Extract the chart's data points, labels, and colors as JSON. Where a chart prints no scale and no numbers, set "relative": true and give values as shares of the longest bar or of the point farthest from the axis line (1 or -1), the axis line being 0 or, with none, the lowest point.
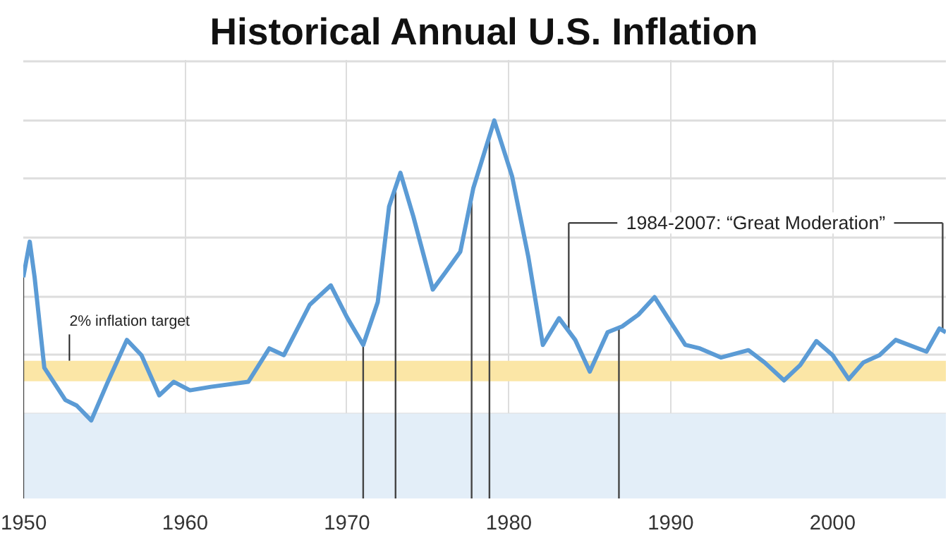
{
  "chart_data": {
    "type": "line",
    "title": "Historical Annual U.S. Inflation",
    "relative": true,
    "x": [
      1950.0,
      1950.4,
      1950.7,
      1951.3,
      1952.6,
      1953.3,
      1954.2,
      1955.2,
      1956.4,
      1957.3,
      1958.4,
      1959.3,
      1960.3,
      1961.6,
      1963.9,
      1965.2,
      1966.1,
      1967.7,
      1969.0,
      1970.0,
      1971.0,
      1971.9,
      1972.6,
      1973.3,
      1974.1,
      1975.3,
      1976.1,
      1977.0,
      1977.8,
      1979.1,
      1980.2,
      1981.2,
      1982.1,
      1983.1,
      1984.1,
      1985.0,
      1986.1,
      1987.0,
      1988.0,
      1989.0,
      1990.0,
      1990.9,
      1991.8,
      1993.1,
      1994.8,
      1995.8,
      1997.0,
      1998.0,
      1999.0,
      2000.0,
      2001.0,
      2001.9,
      2002.9,
      2003.9,
      2005.8,
      2006.6,
      2007.0
    ],
    "series": [
      {
        "color": "#5b9bd5",
        "values": [
          0.465,
          0.586,
          0.465,
          0.156,
          0.046,
          0.027,
          -0.024,
          0.105,
          0.251,
          0.199,
          0.062,
          0.108,
          0.079,
          0.091,
          0.108,
          0.222,
          0.199,
          0.371,
          0.437,
          0.328,
          0.234,
          0.38,
          0.706,
          0.821,
          0.672,
          0.423,
          0.483,
          0.552,
          0.768,
          1.0,
          0.809,
          0.535,
          0.234,
          0.325,
          0.251,
          0.143,
          0.277,
          0.297,
          0.337,
          0.397,
          0.311,
          0.234,
          0.222,
          0.191,
          0.216,
          0.174,
          0.113,
          0.165,
          0.247,
          0.199,
          0.117,
          0.174,
          0.199,
          0.251,
          0.211,
          0.29,
          0.277
        ]
      }
    ],
    "xlim": [
      1950,
      2007
    ],
    "xticks": [
      1950,
      1960,
      1970,
      1980,
      1990,
      2000
    ],
    "grid": true,
    "marker": "none",
    "line_style": "solid",
    "tick_labels": "x",
    "bands": [
      {
        "axis": "y",
        "from": -0.29,
        "to": 0,
        "color": "#e3eef8"
      },
      {
        "axis": "y",
        "from": 0.11,
        "to": 0.18,
        "color": "#fbe6a6",
        "label": "2% inflation target"
      }
    ],
    "annotations": [
      "1984-2007: “Great Moderation”"
    ],
    "ref_lines": [
      {
        "axis": "x",
        "value": 1950
      },
      {
        "axis": "x",
        "value": 1971
      },
      {
        "axis": "x",
        "value": 1973
      },
      {
        "axis": "x",
        "value": 1977.7
      },
      {
        "axis": "x",
        "value": 1978.8
      },
      {
        "axis": "x",
        "value": 1986.8
      },
      {
        "axis": "x",
        "value": 1983.7
      },
      {
        "axis": "x",
        "value": 2006.8
      }
    ]
  }
}
